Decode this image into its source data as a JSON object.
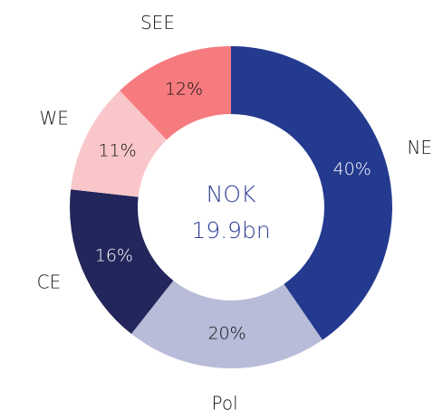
{
  "chart_data": {
    "type": "donut",
    "categories": [
      "NE",
      "Pol",
      "CE",
      "WE",
      "SEE"
    ],
    "values": [
      40,
      20,
      16,
      11,
      12
    ],
    "value_labels": [
      "40%",
      "20%",
      "16%",
      "11%",
      "12%"
    ],
    "colors": [
      "#233a8f",
      "#b8bcd9",
      "#22265a",
      "#f9c7ca",
      "#f67b7f"
    ],
    "label_colors": [
      "#ffffff",
      "#111111",
      "#ffffff",
      "#111111",
      "#111111"
    ],
    "center_text": [
      "NOK",
      "19.9bn"
    ]
  }
}
